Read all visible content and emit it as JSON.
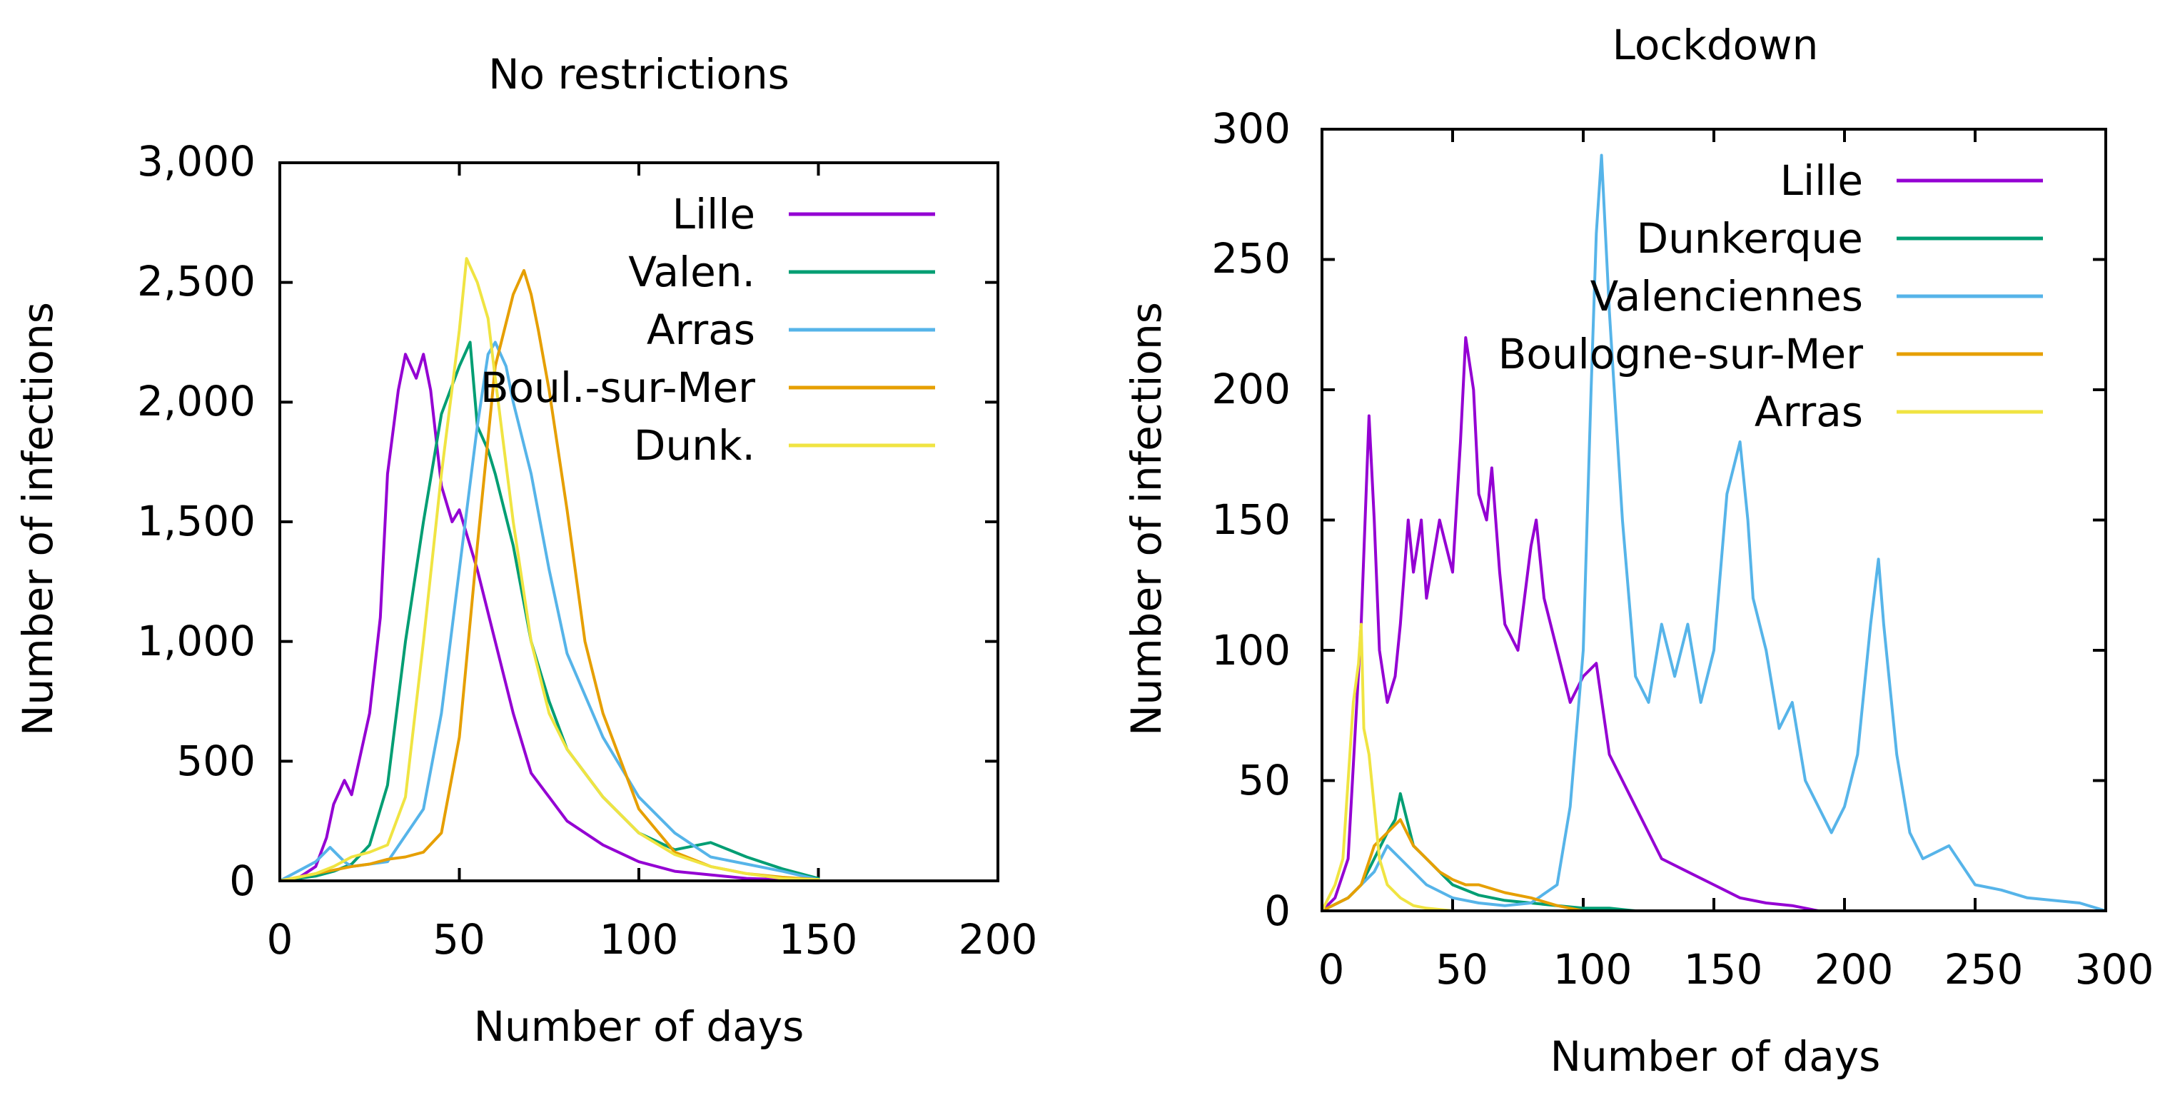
{
  "chart_data": [
    {
      "type": "line",
      "title": "No restrictions",
      "xlabel": "Number of days",
      "ylabel": "Number of infections",
      "xlim": [
        0,
        200
      ],
      "ylim": [
        0,
        3000
      ],
      "xticks": [
        "0",
        "50",
        "100",
        "150",
        "200"
      ],
      "yticks": [
        "0",
        "500",
        "1,000",
        "1,500",
        "2,000",
        "2,500",
        "3,000"
      ],
      "legend_position": "top-right",
      "series": [
        {
          "name": "Lille",
          "color": "#9400d3",
          "x": [
            0,
            5,
            10,
            13,
            15,
            18,
            20,
            25,
            28,
            30,
            33,
            35,
            38,
            40,
            42,
            45,
            48,
            50,
            55,
            60,
            65,
            70,
            75,
            80,
            90,
            100,
            110,
            120,
            130,
            140,
            150
          ],
          "y": [
            0,
            10,
            60,
            180,
            320,
            420,
            360,
            700,
            1100,
            1700,
            2050,
            2200,
            2100,
            2200,
            2050,
            1650,
            1500,
            1550,
            1300,
            1000,
            700,
            450,
            350,
            250,
            150,
            80,
            40,
            25,
            10,
            5,
            2
          ]
        },
        {
          "name": "Valen.",
          "color": "#009e73",
          "x": [
            0,
            10,
            15,
            20,
            25,
            30,
            35,
            40,
            45,
            50,
            53,
            55,
            58,
            60,
            65,
            70,
            75,
            80,
            90,
            100,
            110,
            120,
            125,
            130,
            140,
            150
          ],
          "y": [
            0,
            20,
            40,
            70,
            150,
            400,
            1000,
            1500,
            1950,
            2150,
            2250,
            1900,
            1800,
            1700,
            1400,
            1000,
            750,
            550,
            350,
            200,
            130,
            160,
            130,
            100,
            50,
            10
          ]
        },
        {
          "name": "Arras",
          "color": "#56b4e9",
          "x": [
            0,
            10,
            14,
            18,
            20,
            30,
            40,
            45,
            50,
            55,
            58,
            60,
            63,
            65,
            70,
            75,
            80,
            90,
            100,
            110,
            120,
            130,
            140,
            150
          ],
          "y": [
            0,
            80,
            140,
            80,
            60,
            80,
            300,
            700,
            1300,
            1900,
            2200,
            2250,
            2150,
            2000,
            1700,
            1300,
            950,
            600,
            350,
            200,
            100,
            70,
            40,
            5
          ]
        },
        {
          "name": "Boul.-sur-Mer",
          "color": "#e69f00",
          "x": [
            0,
            10,
            20,
            25,
            30,
            35,
            40,
            45,
            50,
            55,
            60,
            65,
            68,
            70,
            72,
            75,
            80,
            85,
            90,
            100,
            110,
            120,
            130,
            140,
            150
          ],
          "y": [
            0,
            30,
            60,
            70,
            90,
            100,
            120,
            200,
            600,
            1400,
            2150,
            2450,
            2550,
            2450,
            2300,
            2050,
            1550,
            1000,
            700,
            300,
            120,
            60,
            30,
            15,
            5
          ]
        },
        {
          "name": "Dunk.",
          "color": "#f0e442",
          "x": [
            0,
            10,
            15,
            20,
            25,
            30,
            35,
            40,
            45,
            50,
            52,
            55,
            58,
            60,
            65,
            70,
            75,
            80,
            90,
            100,
            110,
            120,
            130,
            140,
            150
          ],
          "y": [
            0,
            30,
            60,
            100,
            120,
            150,
            350,
            1000,
            1700,
            2300,
            2600,
            2500,
            2350,
            2100,
            1500,
            1000,
            700,
            550,
            350,
            200,
            110,
            60,
            30,
            10,
            5
          ]
        }
      ]
    },
    {
      "type": "line",
      "title": "Lockdown",
      "xlabel": "Number of days",
      "ylabel": "Number of infections",
      "xlim": [
        0,
        300
      ],
      "ylim": [
        0,
        300
      ],
      "xticks": [
        "0",
        "50",
        "100",
        "150",
        "200",
        "250",
        "300"
      ],
      "yticks": [
        "0",
        "50",
        "100",
        "150",
        "200",
        "250",
        "300"
      ],
      "legend_position": "top-right",
      "series": [
        {
          "name": "Lille",
          "color": "#9400d3",
          "x": [
            0,
            5,
            10,
            15,
            18,
            20,
            22,
            25,
            28,
            30,
            33,
            35,
            38,
            40,
            45,
            50,
            53,
            55,
            58,
            60,
            63,
            65,
            68,
            70,
            75,
            80,
            82,
            85,
            90,
            95,
            100,
            105,
            110,
            115,
            120,
            125,
            130,
            140,
            150,
            160,
            170,
            180,
            190
          ],
          "y": [
            0,
            5,
            20,
            110,
            190,
            150,
            100,
            80,
            90,
            110,
            150,
            130,
            150,
            120,
            150,
            130,
            180,
            220,
            200,
            160,
            150,
            170,
            130,
            110,
            100,
            140,
            150,
            120,
            100,
            80,
            90,
            95,
            60,
            50,
            40,
            30,
            20,
            15,
            10,
            5,
            3,
            2,
            0
          ]
        },
        {
          "name": "Dunkerque",
          "color": "#009e73",
          "x": [
            0,
            10,
            15,
            20,
            25,
            28,
            30,
            35,
            40,
            45,
            50,
            60,
            70,
            80,
            90,
            100,
            110,
            120
          ],
          "y": [
            0,
            5,
            10,
            20,
            30,
            35,
            45,
            25,
            20,
            15,
            10,
            6,
            4,
            3,
            2,
            1,
            1,
            0
          ]
        },
        {
          "name": "Valenciennes",
          "color": "#56b4e9",
          "x": [
            0,
            10,
            20,
            25,
            30,
            40,
            50,
            60,
            70,
            80,
            90,
            95,
            100,
            103,
            105,
            107,
            110,
            115,
            120,
            125,
            130,
            135,
            140,
            145,
            150,
            155,
            160,
            163,
            165,
            170,
            175,
            180,
            185,
            190,
            195,
            200,
            205,
            210,
            213,
            215,
            220,
            225,
            230,
            240,
            250,
            260,
            270,
            280,
            290,
            300
          ],
          "y": [
            0,
            5,
            15,
            25,
            20,
            10,
            5,
            3,
            2,
            3,
            10,
            40,
            100,
            200,
            260,
            290,
            230,
            150,
            90,
            80,
            110,
            90,
            110,
            80,
            100,
            160,
            180,
            150,
            120,
            100,
            70,
            80,
            50,
            40,
            30,
            40,
            60,
            110,
            135,
            110,
            60,
            30,
            20,
            25,
            10,
            8,
            5,
            4,
            3,
            0
          ]
        },
        {
          "name": "Boulogne-sur-Mer",
          "color": "#e69f00",
          "x": [
            0,
            10,
            15,
            20,
            25,
            30,
            35,
            40,
            45,
            50,
            55,
            60,
            70,
            80,
            90,
            100
          ],
          "y": [
            0,
            5,
            10,
            25,
            30,
            35,
            25,
            20,
            15,
            12,
            10,
            10,
            7,
            5,
            2,
            0
          ]
        },
        {
          "name": "Arras",
          "color": "#f0e442",
          "x": [
            0,
            5,
            8,
            10,
            12,
            14,
            15,
            16,
            18,
            20,
            22,
            25,
            30,
            35,
            40,
            50,
            60
          ],
          "y": [
            0,
            10,
            20,
            50,
            80,
            95,
            110,
            70,
            60,
            40,
            20,
            10,
            5,
            2,
            1,
            0,
            0
          ]
        }
      ]
    }
  ]
}
